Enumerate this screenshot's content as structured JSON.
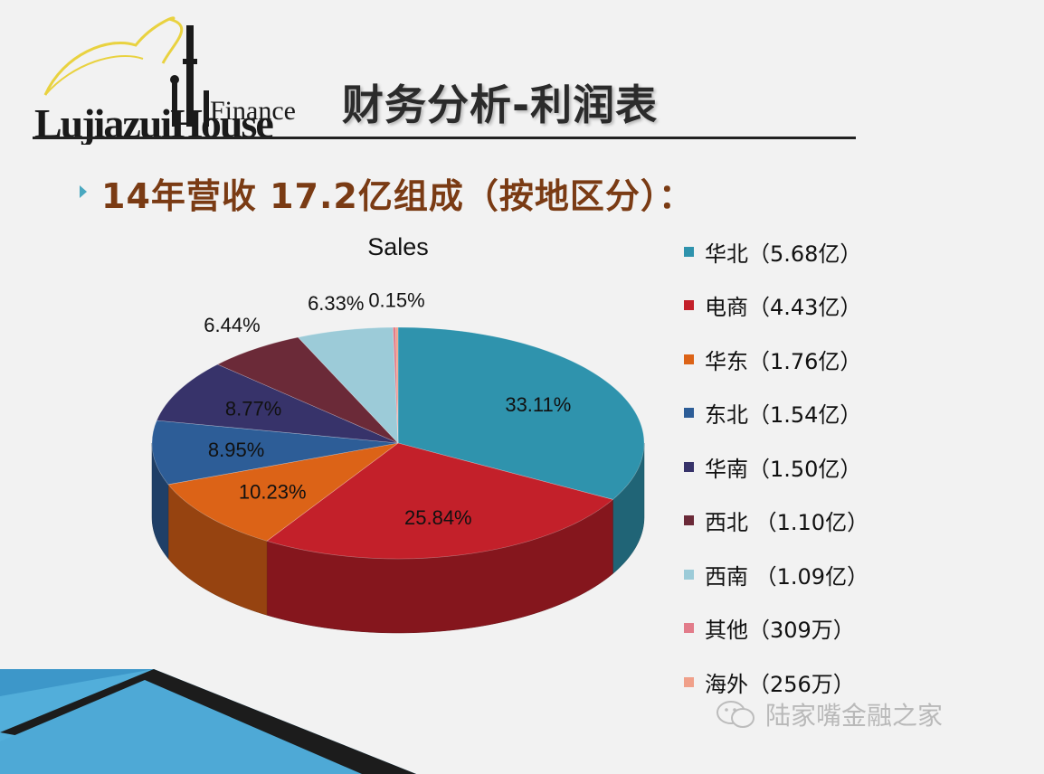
{
  "header": {
    "logo_text_main": "LujiazuiHouse",
    "logo_text_finance": "Finance",
    "title": "财务分析-利润表"
  },
  "subtitle": "14年营收 17.2亿组成（按地区分）：",
  "chart_data": {
    "type": "pie",
    "title": "Sales",
    "style": "3d",
    "categories": [
      "华北（5.68亿）",
      "电商（4.43亿）",
      "华东（1.76亿）",
      "东北（1.54亿）",
      "华南（1.50亿）",
      "西北 （1.10亿）",
      "西南 （1.09亿）",
      "其他（309万）",
      "海外（256万）"
    ],
    "values": [
      33.11,
      25.84,
      10.23,
      8.95,
      8.77,
      6.44,
      6.33,
      0.18,
      0.15
    ],
    "value_labels": [
      "33.11%",
      "25.84%",
      "10.23%",
      "8.95%",
      "8.77%",
      "6.44%",
      "6.33%",
      "",
      "0.15%"
    ],
    "colors": [
      "#2f93ad",
      "#c3202a",
      "#dc6317",
      "#2d5d97",
      "#37336a",
      "#6b2a38",
      "#9ccbd8",
      "#e27c8a",
      "#f0a08a"
    ],
    "legend_position": "right"
  },
  "watermark": "陆家嘴金融之家"
}
